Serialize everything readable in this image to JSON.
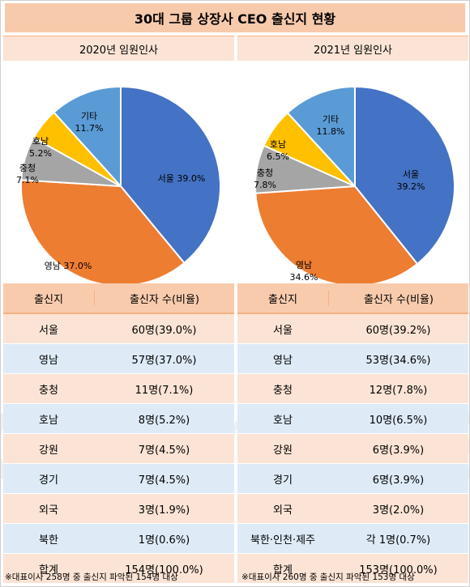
{
  "title": "30대 그룹 상장사 CEO 출신지 현황",
  "panels": [
    {
      "subtitle": "2020년 임원인사",
      "table_header": {
        "c1": "출신지",
        "c2": "출신자 수(비율)"
      },
      "rows": [
        {
          "region": "서울",
          "value": "60명(39.0%)"
        },
        {
          "region": "영남",
          "value": "57명(37.0%)"
        },
        {
          "region": "충청",
          "value": "11명(7.1%)"
        },
        {
          "region": "호남",
          "value": "8명(5.2%)"
        },
        {
          "region": "강원",
          "value": "7명(4.5%)"
        },
        {
          "region": "경기",
          "value": "7명(4.5%)"
        },
        {
          "region": "외국",
          "value": "3명(1.9%)"
        },
        {
          "region": "북한",
          "value": "1명(0.6%)"
        },
        {
          "region": "합계",
          "value": "154명(100.0%)"
        }
      ],
      "note": "※대표이사 258명 중 출신지 파악된 154명 대상"
    },
    {
      "subtitle": "2021년 임원인사",
      "table_header": {
        "c1": "출신지",
        "c2": "출신자 수(비율)"
      },
      "rows": [
        {
          "region": "서울",
          "value": "60명(39.2%)"
        },
        {
          "region": "영남",
          "value": "53명(34.6%)"
        },
        {
          "region": "충청",
          "value": "12명(7.8%)"
        },
        {
          "region": "호남",
          "value": "10명(6.5%)"
        },
        {
          "region": "강원",
          "value": "6명(3.9%)"
        },
        {
          "region": "경기",
          "value": "6명(3.9%)"
        },
        {
          "region": "외국",
          "value": "3명(2.0%)"
        },
        {
          "region": "북한·인천·제주",
          "value": "각 1명(0.7%)"
        },
        {
          "region": "합계",
          "value": "153명(100.0%)"
        }
      ],
      "note": "※대표이사 260명 중 출신지 파악된 153명 대상"
    }
  ],
  "watermark": "datanews",
  "colors": {
    "서울": "#4472c4",
    "영남": "#ed7d31",
    "충청": "#a5a5a5",
    "호남": "#ffc000",
    "기타": "#5b9bd5"
  },
  "chart_data": [
    {
      "type": "pie",
      "title": "2020년 임원인사",
      "categories": [
        "서울",
        "영남",
        "충청",
        "호남",
        "기타"
      ],
      "values": [
        39.0,
        37.0,
        7.1,
        5.2,
        11.7
      ],
      "labels": [
        "서울 39.0%",
        "영남 37.0%",
        "충청\n7.1%",
        "호남\n5.2%",
        "기타\n11.7%"
      ]
    },
    {
      "type": "pie",
      "title": "2021년 임원인사",
      "categories": [
        "서울",
        "영남",
        "충청",
        "호남",
        "기타"
      ],
      "values": [
        39.2,
        34.6,
        7.8,
        6.5,
        11.8
      ],
      "labels": [
        "서울\n39.2%",
        "영남\n34.6%",
        "충청\n7.8%",
        "호남\n6.5%",
        "기타\n11.8%"
      ]
    }
  ]
}
